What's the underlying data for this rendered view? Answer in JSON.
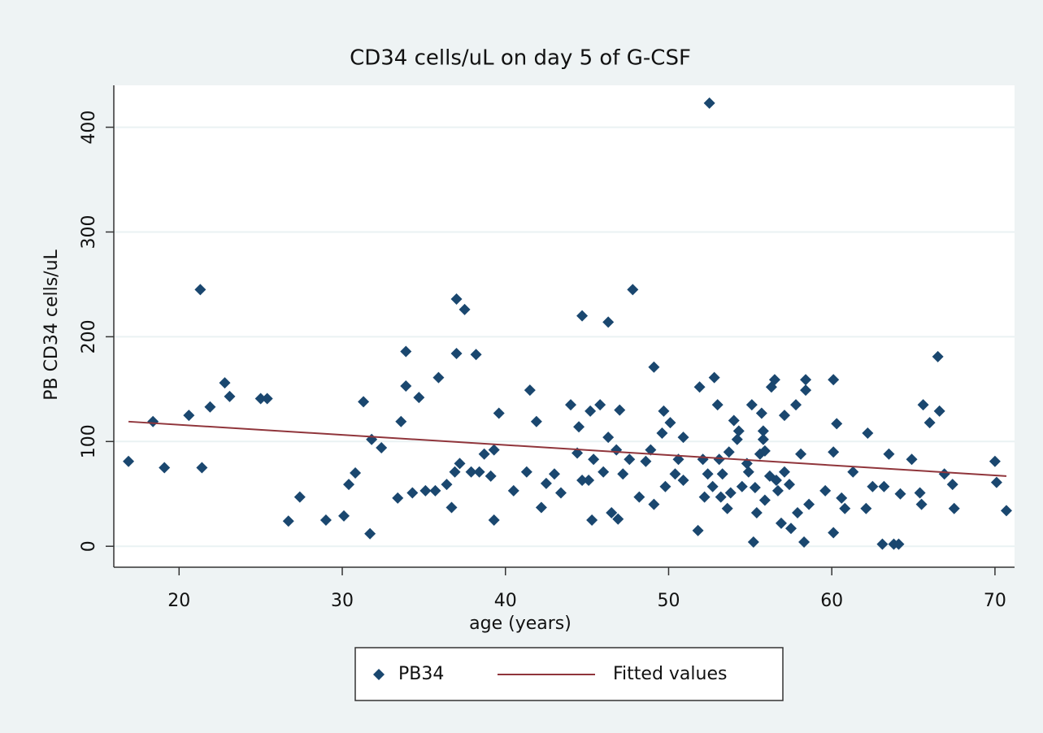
{
  "chart_data": {
    "type": "scatter",
    "title": "CD34 cells/uL on day 5 of G-CSF",
    "x_label": "age (years)",
    "y_label": "PB CD34 cells/uL",
    "xlim": [
      16,
      71.2
    ],
    "ylim": [
      -20,
      440
    ],
    "xticks": [
      20,
      30,
      40,
      50,
      60,
      70
    ],
    "yticks": [
      0,
      100,
      200,
      300,
      400
    ],
    "grid": true,
    "series": [
      {
        "name": "PB34",
        "color": "#1a476f",
        "mode": "markers",
        "x": [
          16.9,
          18.4,
          19.1,
          20.6,
          21.3,
          21.4,
          21.9,
          22.8,
          23.1,
          25,
          25.4,
          26.7,
          27.4,
          29,
          30.1,
          30.4,
          30.8,
          31.3,
          31.7,
          31.8,
          32.4,
          33.4,
          33.6,
          33.9,
          33.9,
          34.3,
          34.7,
          35.1,
          35.7,
          35.9,
          36.4,
          36.7,
          36.9,
          37,
          37,
          37.2,
          37.5,
          37.9,
          38.2,
          38.4,
          38.7,
          39.1,
          39.3,
          39.3,
          39.6,
          40.5,
          41.3,
          41.5,
          41.9,
          42.2,
          42.5,
          43,
          43.4,
          44,
          44.4,
          44.5,
          44.7,
          44.7,
          45.1,
          45.2,
          45.3,
          45.4,
          45.8,
          46,
          46.3,
          46.3,
          46.5,
          46.8,
          46.9,
          47,
          47.2,
          47.6,
          47.8,
          48.2,
          48.6,
          48.9,
          49.1,
          49.1,
          49.6,
          49.7,
          49.8,
          50.1,
          50.4,
          50.6,
          50.9,
          50.9,
          51.8,
          51.9,
          52.1,
          52.2,
          52.4,
          52.5,
          52.7,
          52.8,
          53,
          53.1,
          53.2,
          53.3,
          53.6,
          53.7,
          53.8,
          54,
          54.2,
          54.3,
          54.5,
          54.8,
          54.9,
          55.1,
          55.2,
          55.3,
          55.4,
          55.6,
          55.7,
          55.8,
          55.8,
          55.9,
          55.9,
          56.2,
          56.3,
          56.5,
          56.6,
          56.7,
          56.9,
          57.1,
          57.1,
          57.4,
          57.5,
          57.8,
          57.9,
          58.1,
          58.3,
          58.4,
          58.4,
          58.6,
          59.6,
          60.1,
          60.1,
          60.1,
          60.3,
          60.6,
          60.8,
          61.3,
          62.1,
          62.2,
          62.5,
          63.1,
          63.2,
          63.5,
          63.8,
          64.1,
          64.2,
          64.9,
          65.4,
          65.5,
          65.6,
          66,
          66.5,
          66.6,
          66.9,
          67.4,
          67.5,
          70,
          70.1,
          70.7
        ],
        "values": [
          81,
          119,
          75,
          125,
          245,
          75,
          133,
          156,
          143,
          141,
          141,
          24,
          47,
          25,
          29,
          59,
          70,
          138,
          12,
          102,
          94,
          46,
          119,
          186,
          153,
          51,
          142,
          53,
          53,
          161,
          59,
          37,
          71,
          236,
          184,
          79,
          226,
          71,
          183,
          71,
          88,
          67,
          92,
          25,
          127,
          53,
          71,
          149,
          119,
          37,
          60,
          69,
          51,
          135,
          89,
          114,
          63,
          220,
          63,
          129,
          25,
          83,
          135,
          71,
          214,
          104,
          32,
          92,
          26,
          130,
          69,
          83,
          245,
          47,
          81,
          92,
          171,
          40,
          108,
          129,
          57,
          118,
          69,
          83,
          104,
          63,
          15,
          152,
          83,
          47,
          69,
          423,
          57,
          161,
          135,
          83,
          47,
          69,
          36,
          90,
          51,
          120,
          102,
          110,
          57,
          79,
          71,
          135,
          4,
          56,
          32,
          88,
          127,
          110,
          102,
          91,
          44,
          67,
          152,
          159,
          63,
          53,
          22,
          71,
          125,
          59,
          17,
          135,
          32,
          88,
          4,
          159,
          149,
          40,
          53,
          13,
          159,
          90,
          117,
          46,
          36,
          71,
          36,
          108,
          57,
          2,
          57,
          88,
          2,
          2,
          50,
          83,
          51,
          40,
          135,
          118,
          181,
          129,
          69,
          59,
          36,
          81,
          61,
          34
        ]
      },
      {
        "name": "Fitted values",
        "color": "#90353b",
        "mode": "line",
        "x": [
          16.9,
          70.7
        ],
        "values": [
          119,
          67
        ]
      }
    ],
    "legend": "bottom"
  }
}
